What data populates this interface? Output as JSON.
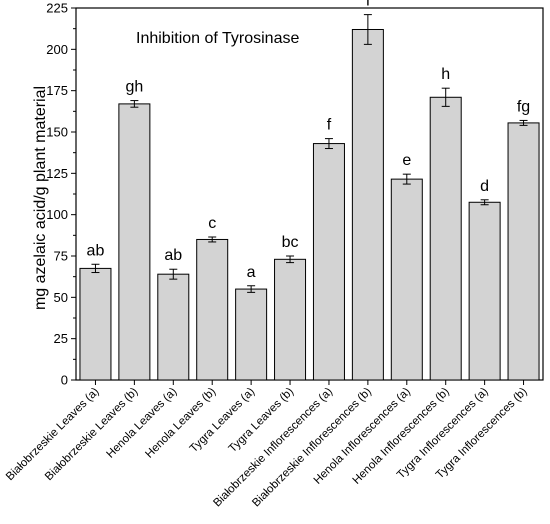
{
  "chart_data": {
    "type": "bar",
    "title": "Inhibition of Tyrosinase",
    "xlabel": "",
    "ylabel": "mg azelaic acid/g plant material",
    "ylim": [
      0,
      225
    ],
    "yticks": [
      0,
      25,
      50,
      75,
      100,
      125,
      150,
      175,
      200,
      225
    ],
    "grid": false,
    "categories": [
      "Białobrzeskie Leaves (a)",
      "Białobrzeskie Leaves (b)",
      "Henola Leaves (a)",
      "Henola Leaves (b)",
      "Tygra Leaves (a)",
      "Tygra Leaves (b)",
      "Białobrzeskie Inflorescences (a)",
      "Białobrzeskie Inflorescences (b)",
      "Henola Inflorescences (a)",
      "Henola Inflorescences (b)",
      "Tygra Inflorescences (a)",
      "Tygra Inflorescences (b)"
    ],
    "values": [
      67.5,
      167,
      64,
      85,
      55,
      73,
      143,
      212,
      121.5,
      171,
      107.5,
      155.5
    ],
    "errors": [
      2.5,
      2,
      3,
      1.5,
      2,
      2,
      3,
      9,
      3,
      5.5,
      1.5,
      1.5
    ],
    "significance_labels": [
      "ab",
      "gh",
      "ab",
      "c",
      "a",
      "bc",
      "f",
      "i",
      "e",
      "h",
      "d",
      "fg"
    ],
    "colors": {
      "bar_fill": "#d3d3d3",
      "bar_stroke": "#000000",
      "axis": "#000000"
    }
  }
}
